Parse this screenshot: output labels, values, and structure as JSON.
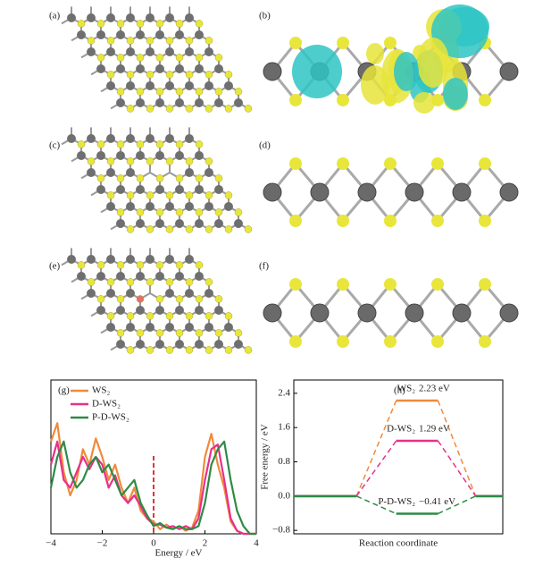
{
  "panels": {
    "labels": [
      "(a)",
      "(b)",
      "(c)",
      "(d)",
      "(e)",
      "(f)"
    ]
  },
  "chart_data": [
    {
      "type": "line",
      "panel_label": "(g)",
      "xlabel": "Energy / eV",
      "x": [
        -4,
        -3.75,
        -3.5,
        -3.25,
        -3,
        -2.75,
        -2.5,
        -2.25,
        -2,
        -1.75,
        -1.5,
        -1.25,
        -1,
        -0.75,
        -0.5,
        -0.25,
        0,
        0.25,
        0.5,
        0.75,
        1,
        1.25,
        1.5,
        1.75,
        2,
        2.25,
        2.5,
        2.75,
        3,
        3.25,
        3.5,
        3.75,
        4
      ],
      "series": [
        {
          "name": "WS₂",
          "color": "#f08a3c",
          "values": [
            0.6,
            0.72,
            0.4,
            0.25,
            0.35,
            0.55,
            0.45,
            0.62,
            0.5,
            0.35,
            0.45,
            0.3,
            0.2,
            0.3,
            0.15,
            0.1,
            0.08,
            0.03,
            0.06,
            0.03,
            0.05,
            0.02,
            0.04,
            0.15,
            0.5,
            0.65,
            0.45,
            0.3,
            0.08,
            0.02,
            0,
            0,
            0
          ]
        },
        {
          "name": "D-WS₂",
          "color": "#e8308a",
          "values": [
            0.45,
            0.6,
            0.35,
            0.3,
            0.4,
            0.5,
            0.42,
            0.5,
            0.45,
            0.3,
            0.38,
            0.25,
            0.2,
            0.25,
            0.18,
            0.1,
            0.06,
            0.06,
            0.04,
            0.05,
            0.03,
            0.05,
            0.03,
            0.1,
            0.35,
            0.55,
            0.58,
            0.35,
            0.1,
            0.02,
            0,
            0,
            0
          ]
        },
        {
          "name": "P-D-WS₂",
          "color": "#2e8b45",
          "values": [
            0.3,
            0.5,
            0.6,
            0.4,
            0.3,
            0.35,
            0.45,
            0.5,
            0.4,
            0.45,
            0.35,
            0.25,
            0.3,
            0.35,
            0.2,
            0.12,
            0.05,
            0.07,
            0.04,
            0.03,
            0.05,
            0.03,
            0.03,
            0.05,
            0.2,
            0.45,
            0.55,
            0.6,
            0.35,
            0.15,
            0.05,
            0,
            0
          ]
        }
      ],
      "xlim": [
        -4,
        4
      ],
      "xticks": [
        {
          "value": -4,
          "label": "−4"
        },
        {
          "value": -2,
          "label": "−2"
        },
        0,
        2,
        4
      ],
      "ylim": [
        0,
        1
      ],
      "legend": "upper left",
      "reference_line": {
        "x": 0,
        "color": "#e8303a"
      }
    },
    {
      "type": "energy",
      "panel_label": "(h)",
      "xlabel": "Reaction coordinate",
      "ylabel": "Free energy / eV",
      "categories": [
        null,
        null,
        null
      ],
      "series": [
        {
          "name": "WS₂",
          "color": "#f08a3c",
          "values": [
            0,
            2.23,
            0
          ],
          "value_labels": [
            null,
            "2.23 eV",
            null
          ]
        },
        {
          "name": "D-WS₂",
          "color": "#e8308a",
          "values": [
            0,
            1.29,
            0
          ],
          "value_labels": [
            null,
            "1.29 eV",
            null
          ]
        },
        {
          "name": "P-D-WS₂",
          "color": "#2e8b45",
          "values": [
            0,
            -0.41,
            0
          ],
          "value_labels": [
            null,
            "−0.41 eV",
            null
          ]
        }
      ],
      "ylim": [
        -0.88,
        2.71
      ],
      "yticks": [
        {
          "value": -0.8,
          "label": "−0.8"
        },
        {
          "value": 0,
          "label": "0.0"
        },
        0.8,
        1.6,
        2.4
      ]
    }
  ]
}
